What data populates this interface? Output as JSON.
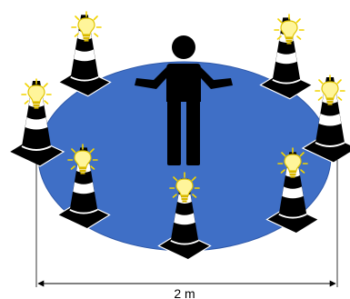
{
  "dimension": {
    "label": "2 m"
  },
  "colors": {
    "area_fill": "#3f6fc6",
    "area_stroke": "#2d57a8",
    "cone_body": "#000000",
    "cone_stripe": "#ffffff",
    "bulb_glass": "#fff59a",
    "bulb_stroke": "#e0c400",
    "bulb_rays": "#f2d400",
    "person": "#000000",
    "dimension_line": "#000000"
  },
  "cones": [
    {
      "name": "cone-back-left",
      "icon": "traffic-cone-icon",
      "light": "light-bulb-icon"
    },
    {
      "name": "cone-back-right",
      "icon": "traffic-cone-icon",
      "light": "light-bulb-icon"
    },
    {
      "name": "cone-left",
      "icon": "traffic-cone-icon",
      "light": "light-bulb-icon"
    },
    {
      "name": "cone-right",
      "icon": "traffic-cone-icon",
      "light": "light-bulb-icon"
    },
    {
      "name": "cone-front-left",
      "icon": "traffic-cone-icon",
      "light": "light-bulb-icon"
    },
    {
      "name": "cone-front-center",
      "icon": "traffic-cone-icon",
      "light": "light-bulb-icon"
    },
    {
      "name": "cone-front-right",
      "icon": "traffic-cone-icon",
      "light": "light-bulb-icon"
    }
  ],
  "person": {
    "icon": "person-icon"
  }
}
